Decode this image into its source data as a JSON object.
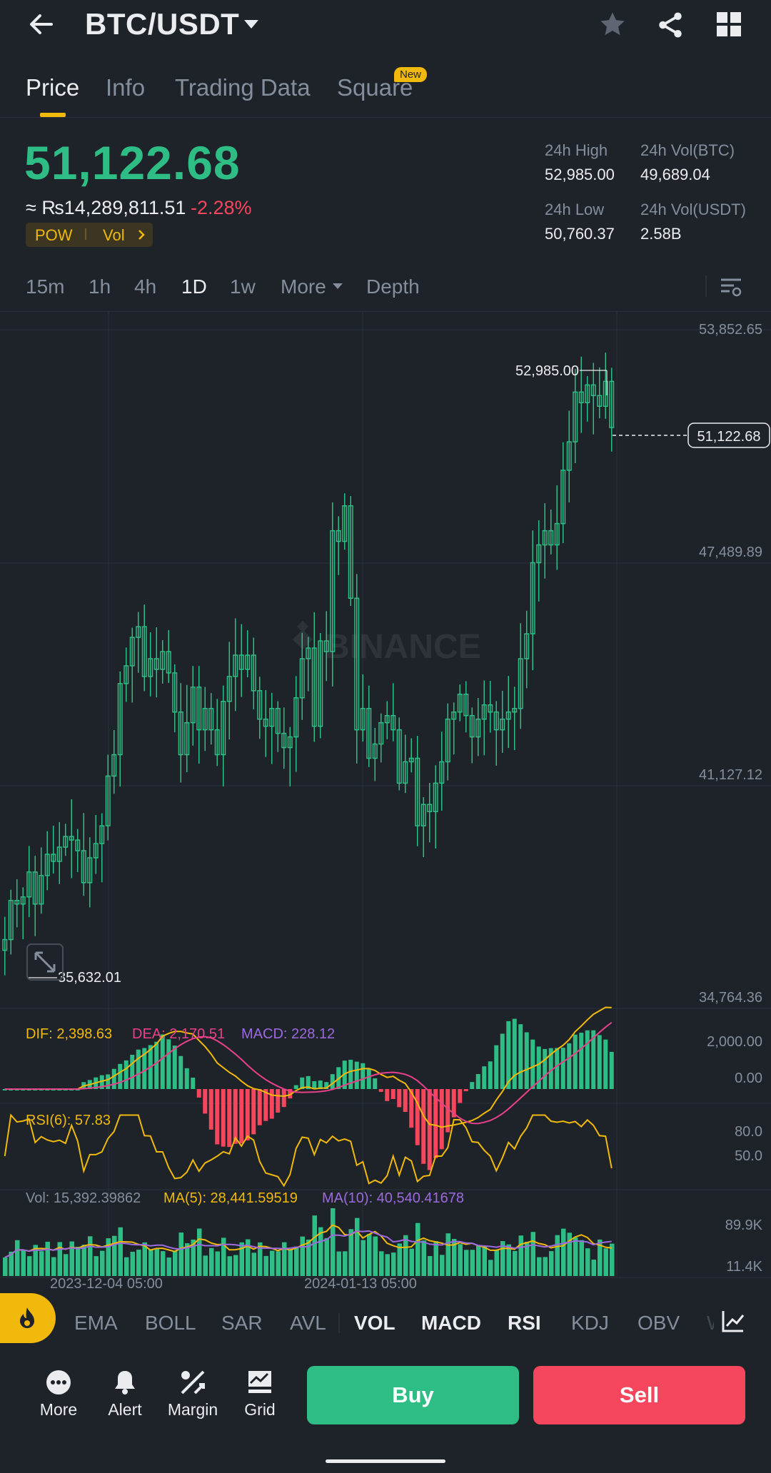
{
  "header": {
    "pair": "BTC/USDT",
    "icons": [
      "back-arrow-icon",
      "dropdown-caret-icon",
      "star-icon",
      "share-icon",
      "grid-layout-icon"
    ]
  },
  "tabs": [
    {
      "label": "Price",
      "active": true
    },
    {
      "label": "Info",
      "active": false
    },
    {
      "label": "Trading Data",
      "active": false
    },
    {
      "label": "Square",
      "active": false,
      "badge": "New"
    }
  ],
  "ticker": {
    "last_price": "51,122.68",
    "fiat_value": "≈ ₨14,289,811.51",
    "change_pct": "-2.28%",
    "tags": [
      "POW",
      "Vol"
    ],
    "stats": {
      "high_label": "24h High",
      "high_value": "52,985.00",
      "vol_btc_label": "24h Vol(BTC)",
      "vol_btc_value": "49,689.04",
      "low_label": "24h Low",
      "low_value": "50,760.37",
      "vol_usdt_label": "24h Vol(USDT)",
      "vol_usdt_value": "2.58B"
    }
  },
  "intervals": [
    {
      "label": "15m",
      "active": false
    },
    {
      "label": "1h",
      "active": false
    },
    {
      "label": "4h",
      "active": false
    },
    {
      "label": "1D",
      "active": true
    },
    {
      "label": "1w",
      "active": false
    },
    {
      "label": "More",
      "active": false
    },
    {
      "label": "Depth",
      "active": false
    }
  ],
  "chart_data": {
    "type": "candlestick",
    "interval": "1D",
    "y_axis_labels": [
      "53,852.65",
      "47,489.89",
      "41,127.12",
      "34,764.36"
    ],
    "ylim": [
      34764.36,
      53852.65
    ],
    "x_axis_labels": [
      "2023-12-04 05:00",
      "2024-01-13 05:00"
    ],
    "max_marker": "52,985.00",
    "min_marker": "35,632.01",
    "current_price_label": "51,122.68",
    "watermark": "BINANCE",
    "closes": [
      36700,
      37800,
      37700,
      37900,
      38600,
      37700,
      38500,
      39100,
      38900,
      39300,
      39600,
      39500,
      39200,
      38300,
      39000,
      39400,
      39900,
      41300,
      41900,
      43900,
      44400,
      45200,
      45500,
      44100,
      44600,
      44300,
      44800,
      44200,
      43100,
      41900,
      42800,
      43800,
      42600,
      43200,
      42600,
      41900,
      43400,
      44100,
      44700,
      44300,
      44700,
      43700,
      42900,
      42700,
      43200,
      42500,
      42100,
      42400,
      43500,
      44600,
      44900,
      42700,
      45100,
      44800,
      48200,
      47900,
      48900,
      46300,
      42600,
      43200,
      41800,
      42200,
      42800,
      43000,
      42600,
      41100,
      41700,
      41800,
      39900,
      40500,
      40300,
      41100,
      41700,
      42900,
      43100,
      43600,
      43000,
      42400,
      42900,
      43300,
      43100,
      42600,
      42900,
      43100,
      43200,
      44600,
      45300,
      47300,
      47800,
      48200,
      47800,
      48400,
      49900,
      50700,
      52100,
      51800,
      52300,
      52000,
      51700,
      52400,
      51100
    ],
    "rsi_scale": [
      "80.0",
      "50.0"
    ],
    "macd_scale": [
      "2,000.00",
      "0.00"
    ],
    "vol_scale": [
      "89.9K",
      "11.4K"
    ]
  },
  "indicators": {
    "macd": {
      "dif": "DIF: 2,398.63",
      "dea": "DEA: 2,170.51",
      "macd": "MACD: 228.12"
    },
    "rsi": {
      "rsi6": "RSI(6): 57.83"
    },
    "volume": {
      "vol": "Vol: 15,392.39862",
      "ma5": "MA(5): 28,441.59519",
      "ma10": "MA(10): 40,540.41678"
    }
  },
  "indicator_bar": [
    {
      "label": "EMA",
      "on": false
    },
    {
      "label": "BOLL",
      "on": false
    },
    {
      "label": "SAR",
      "on": false
    },
    {
      "label": "AVL",
      "on": false
    },
    {
      "label": "VOL",
      "on": true
    },
    {
      "label": "MACD",
      "on": true
    },
    {
      "label": "RSI",
      "on": true
    },
    {
      "label": "KDJ",
      "on": false
    },
    {
      "label": "OBV",
      "on": false
    },
    {
      "label": "W",
      "on": false
    }
  ],
  "bottom": {
    "tools": [
      {
        "label": "More",
        "icon": "more-dots-icon"
      },
      {
        "label": "Alert",
        "icon": "bell-icon"
      },
      {
        "label": "Margin",
        "icon": "margin-percent-icon"
      },
      {
        "label": "Grid",
        "icon": "grid-trading-icon"
      }
    ],
    "buy": "Buy",
    "sell": "Sell"
  },
  "colors": {
    "up": "#2ebd85",
    "down": "#f6465d",
    "accent": "#f0b90b",
    "bg": "#1e2329"
  }
}
